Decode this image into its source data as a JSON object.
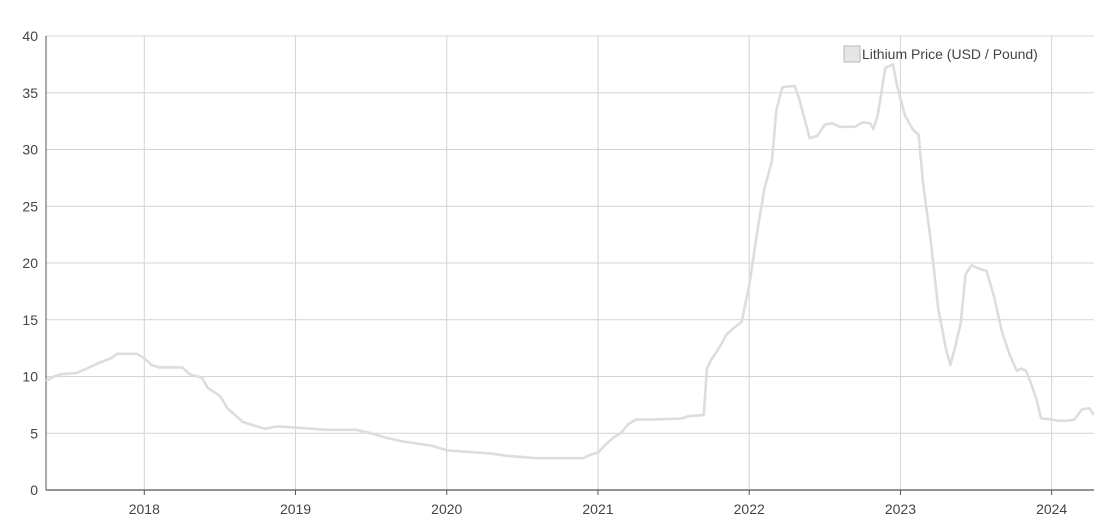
{
  "chart_data": {
    "type": "line",
    "title": "",
    "xlabel": "",
    "ylabel": "",
    "xlim": [
      2017.35,
      2024.28
    ],
    "ylim": [
      0,
      40
    ],
    "yticks": [
      0,
      5,
      10,
      15,
      20,
      25,
      30,
      35,
      40
    ],
    "xticks": [
      2018,
      2019,
      2020,
      2021,
      2022,
      2023,
      2024
    ],
    "grid": true,
    "legend_position": "top-right",
    "colors": {
      "line": "#dddddd",
      "grid": "#d4d4d4",
      "axis": "#555555",
      "legend_box_fill": "#e6e6e6",
      "legend_box_stroke": "#b8b8b8"
    },
    "series": [
      {
        "name": "Lithium Price (USD / Pound)",
        "points": [
          [
            2017.35,
            9.6
          ],
          [
            2017.4,
            10.0
          ],
          [
            2017.45,
            10.2
          ],
          [
            2017.55,
            10.3
          ],
          [
            2017.62,
            10.7
          ],
          [
            2017.7,
            11.2
          ],
          [
            2017.78,
            11.6
          ],
          [
            2017.82,
            12.0
          ],
          [
            2017.95,
            12.0
          ],
          [
            2018.0,
            11.6
          ],
          [
            2018.05,
            11.0
          ],
          [
            2018.1,
            10.8
          ],
          [
            2018.25,
            10.8
          ],
          [
            2018.3,
            10.2
          ],
          [
            2018.38,
            9.9
          ],
          [
            2018.42,
            9.0
          ],
          [
            2018.5,
            8.3
          ],
          [
            2018.55,
            7.2
          ],
          [
            2018.65,
            6.0
          ],
          [
            2018.72,
            5.7
          ],
          [
            2018.8,
            5.4
          ],
          [
            2018.88,
            5.6
          ],
          [
            2019.0,
            5.5
          ],
          [
            2019.1,
            5.4
          ],
          [
            2019.2,
            5.3
          ],
          [
            2019.4,
            5.3
          ],
          [
            2019.5,
            5.0
          ],
          [
            2019.6,
            4.6
          ],
          [
            2019.7,
            4.3
          ],
          [
            2019.8,
            4.1
          ],
          [
            2019.9,
            3.9
          ],
          [
            2020.0,
            3.5
          ],
          [
            2020.1,
            3.4
          ],
          [
            2020.2,
            3.3
          ],
          [
            2020.3,
            3.2
          ],
          [
            2020.4,
            3.0
          ],
          [
            2020.5,
            2.9
          ],
          [
            2020.6,
            2.8
          ],
          [
            2020.9,
            2.8
          ],
          [
            2020.95,
            3.1
          ],
          [
            2021.0,
            3.3
          ],
          [
            2021.05,
            4.0
          ],
          [
            2021.1,
            4.6
          ],
          [
            2021.15,
            5.0
          ],
          [
            2021.2,
            5.8
          ],
          [
            2021.25,
            6.2
          ],
          [
            2021.35,
            6.2
          ],
          [
            2021.55,
            6.3
          ],
          [
            2021.6,
            6.5
          ],
          [
            2021.7,
            6.6
          ],
          [
            2021.72,
            10.7
          ],
          [
            2021.75,
            11.5
          ],
          [
            2021.8,
            12.5
          ],
          [
            2021.85,
            13.7
          ],
          [
            2021.9,
            14.3
          ],
          [
            2021.95,
            14.8
          ],
          [
            2022.0,
            18.0
          ],
          [
            2022.05,
            22.5
          ],
          [
            2022.1,
            26.5
          ],
          [
            2022.15,
            29.0
          ],
          [
            2022.18,
            33.5
          ],
          [
            2022.22,
            35.5
          ],
          [
            2022.3,
            35.6
          ],
          [
            2022.33,
            34.5
          ],
          [
            2022.36,
            33.0
          ],
          [
            2022.4,
            31.0
          ],
          [
            2022.45,
            31.2
          ],
          [
            2022.5,
            32.2
          ],
          [
            2022.55,
            32.3
          ],
          [
            2022.6,
            32.0
          ],
          [
            2022.7,
            32.0
          ],
          [
            2022.75,
            32.4
          ],
          [
            2022.8,
            32.3
          ],
          [
            2022.82,
            31.8
          ],
          [
            2022.85,
            33.0
          ],
          [
            2022.9,
            37.2
          ],
          [
            2022.95,
            37.5
          ],
          [
            2022.98,
            35.5
          ],
          [
            2023.03,
            33.0
          ],
          [
            2023.08,
            31.8
          ],
          [
            2023.12,
            31.3
          ],
          [
            2023.15,
            27.0
          ],
          [
            2023.2,
            22.0
          ],
          [
            2023.25,
            16.0
          ],
          [
            2023.3,
            12.5
          ],
          [
            2023.33,
            11.0
          ],
          [
            2023.36,
            12.5
          ],
          [
            2023.4,
            14.8
          ],
          [
            2023.43,
            19.0
          ],
          [
            2023.47,
            19.8
          ],
          [
            2023.52,
            19.5
          ],
          [
            2023.57,
            19.3
          ],
          [
            2023.62,
            17.0
          ],
          [
            2023.67,
            14.0
          ],
          [
            2023.72,
            12.0
          ],
          [
            2023.77,
            10.5
          ],
          [
            2023.8,
            10.7
          ],
          [
            2023.83,
            10.5
          ],
          [
            2023.86,
            9.5
          ],
          [
            2023.9,
            8.0
          ],
          [
            2023.93,
            6.3
          ],
          [
            2024.0,
            6.2
          ],
          [
            2024.05,
            6.1
          ],
          [
            2024.1,
            6.1
          ],
          [
            2024.15,
            6.2
          ],
          [
            2024.2,
            7.1
          ],
          [
            2024.25,
            7.2
          ],
          [
            2024.28,
            6.6
          ]
        ]
      }
    ]
  }
}
